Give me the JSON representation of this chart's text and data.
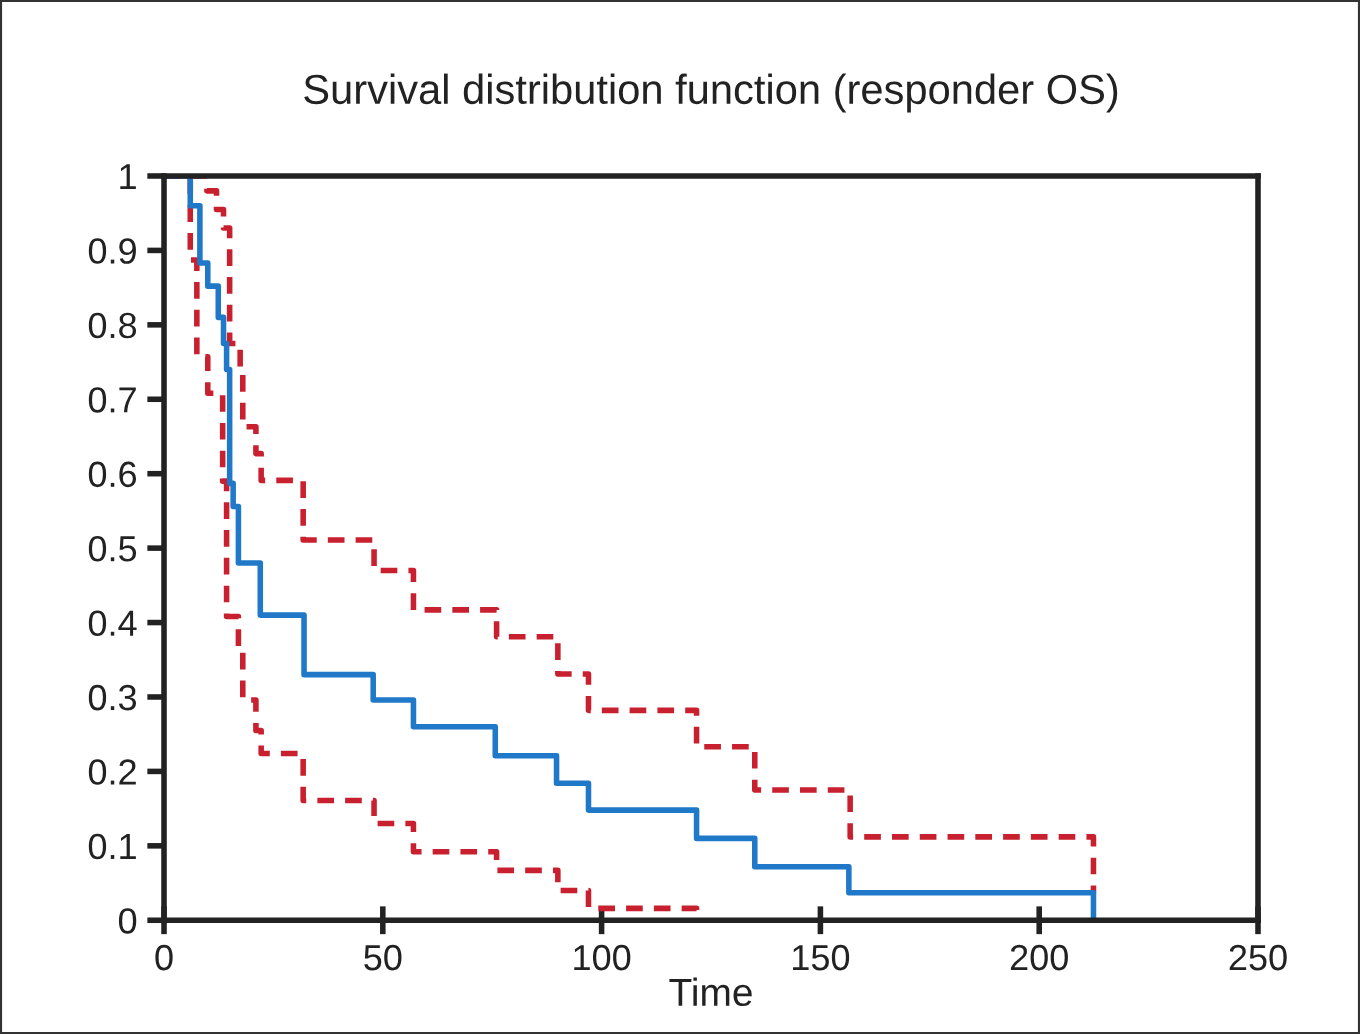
{
  "chart_data": {
    "type": "step",
    "title": "Survival distribution function (responder OS)",
    "xlabel": "Time",
    "xlim": [
      0,
      250
    ],
    "xticks": [
      0,
      50,
      100,
      150,
      200,
      250
    ],
    "ylim": [
      0,
      1
    ],
    "yticks": [
      0,
      0.1,
      0.2,
      0.3,
      0.4,
      0.5,
      0.6,
      0.7,
      0.8,
      0.9,
      1
    ],
    "grid": false,
    "marker": "none",
    "series": [
      {
        "color": "#c8202f",
        "line_style": "dashed",
        "x": [
          0,
          9.8,
          12,
          13.6,
          15,
          17.4,
          18,
          21,
          22.2,
          31.8,
          48,
          57,
          76,
          90,
          97,
          121.7,
          135,
          156.8,
          212.4
        ],
        "values": [
          1,
          0.98,
          0.955,
          0.93,
          0.775,
          0.735,
          0.663,
          0.627,
          0.591,
          0.511,
          0.47,
          0.417,
          0.381,
          0.331,
          0.282,
          0.233,
          0.175,
          0.112,
          0.037
        ]
      },
      {
        "color": "#c8202f",
        "line_style": "dashed",
        "x": [
          0,
          6,
          7.5,
          10,
          13.4,
          14.3,
          17,
          18,
          21,
          22.2,
          31.8,
          48,
          57,
          76,
          90,
          97,
          121.7
        ],
        "values": [
          1,
          0.887,
          0.757,
          0.708,
          0.59,
          0.408,
          0.363,
          0.296,
          0.255,
          0.224,
          0.161,
          0.13,
          0.092,
          0.067,
          0.04,
          0.016,
          0
        ]
      },
      {
        "color": "#1f78c8",
        "line_style": "solid",
        "x": [
          0,
          6,
          8.2,
          10,
          12.4,
          13.6,
          14.3,
          15,
          15.8,
          17,
          22,
          32,
          47.8,
          57,
          75.7,
          89.7,
          97,
          121.7,
          135,
          156.5,
          212.4
        ],
        "values": [
          1,
          0.96,
          0.883,
          0.852,
          0.81,
          0.775,
          0.74,
          0.587,
          0.556,
          0.48,
          0.41,
          0.33,
          0.296,
          0.26,
          0.221,
          0.184,
          0.148,
          0.11,
          0.072,
          0.037,
          0
        ]
      }
    ]
  }
}
